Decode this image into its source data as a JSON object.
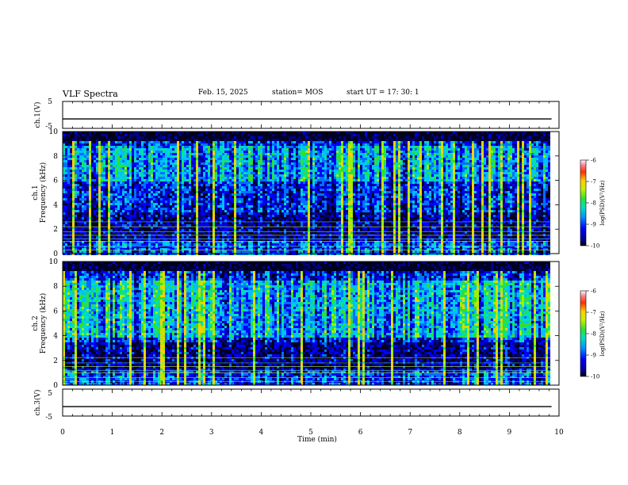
{
  "header": {
    "title": "VLF Spectra",
    "date": "Feb. 15, 2025",
    "station": "station= MOS",
    "start": "start  UT =   17: 30: 1"
  },
  "chart_data": {
    "type": "heatmap",
    "xlabel": "Time (min)",
    "xlim": [
      0,
      10
    ],
    "xticks": [
      "0",
      "1",
      "2",
      "3",
      "4",
      "5",
      "6",
      "7",
      "8",
      "9",
      "10"
    ],
    "panels": [
      {
        "kind": "line",
        "ylabel": "ch.1(V)",
        "yticks": [
          "5",
          "-5"
        ],
        "ylim": [
          -5,
          5
        ],
        "level": -1.5
      },
      {
        "kind": "spectrogram",
        "ylabel": "ch.1\nFrequency (kHz)",
        "ylim": [
          0,
          10
        ],
        "yticks": [
          "0",
          "2",
          "4",
          "6",
          "8",
          "10"
        ],
        "colorbar": {
          "label": "log(PSD)(V²/Hz)",
          "ticks": [
            "-6",
            "-7",
            "-8",
            "-9",
            "-10"
          ],
          "range": [
            -10,
            -6
          ]
        },
        "time_extent_min": 9.85,
        "dominant_band_khz": [
          6,
          9
        ],
        "hum_lines_khz": [
          0.3,
          0.6,
          1.0,
          1.2,
          1.5,
          1.8,
          2.2,
          2.6
        ]
      },
      {
        "kind": "spectrogram",
        "ylabel": "ch.2\nFrequency (kHz)",
        "ylim": [
          0,
          10
        ],
        "yticks": [
          "0",
          "2",
          "4",
          "6",
          "8",
          "10"
        ],
        "colorbar": {
          "label": "log(PSD)(V²/Hz)",
          "ticks": [
            "-6",
            "-7",
            "-8",
            "-9",
            "-10"
          ],
          "range": [
            -10,
            -6
          ]
        },
        "time_extent_min": 9.85,
        "dominant_band_khz": [
          4,
          8.5
        ],
        "hum_lines_khz": [
          0.3,
          0.6,
          1.0,
          1.2,
          1.5,
          1.8,
          2.2
        ]
      },
      {
        "kind": "line",
        "ylabel": "ch.3(V)",
        "yticks": [
          "5",
          "-5"
        ],
        "ylim": [
          -5,
          5
        ],
        "level": -1.5
      }
    ]
  }
}
